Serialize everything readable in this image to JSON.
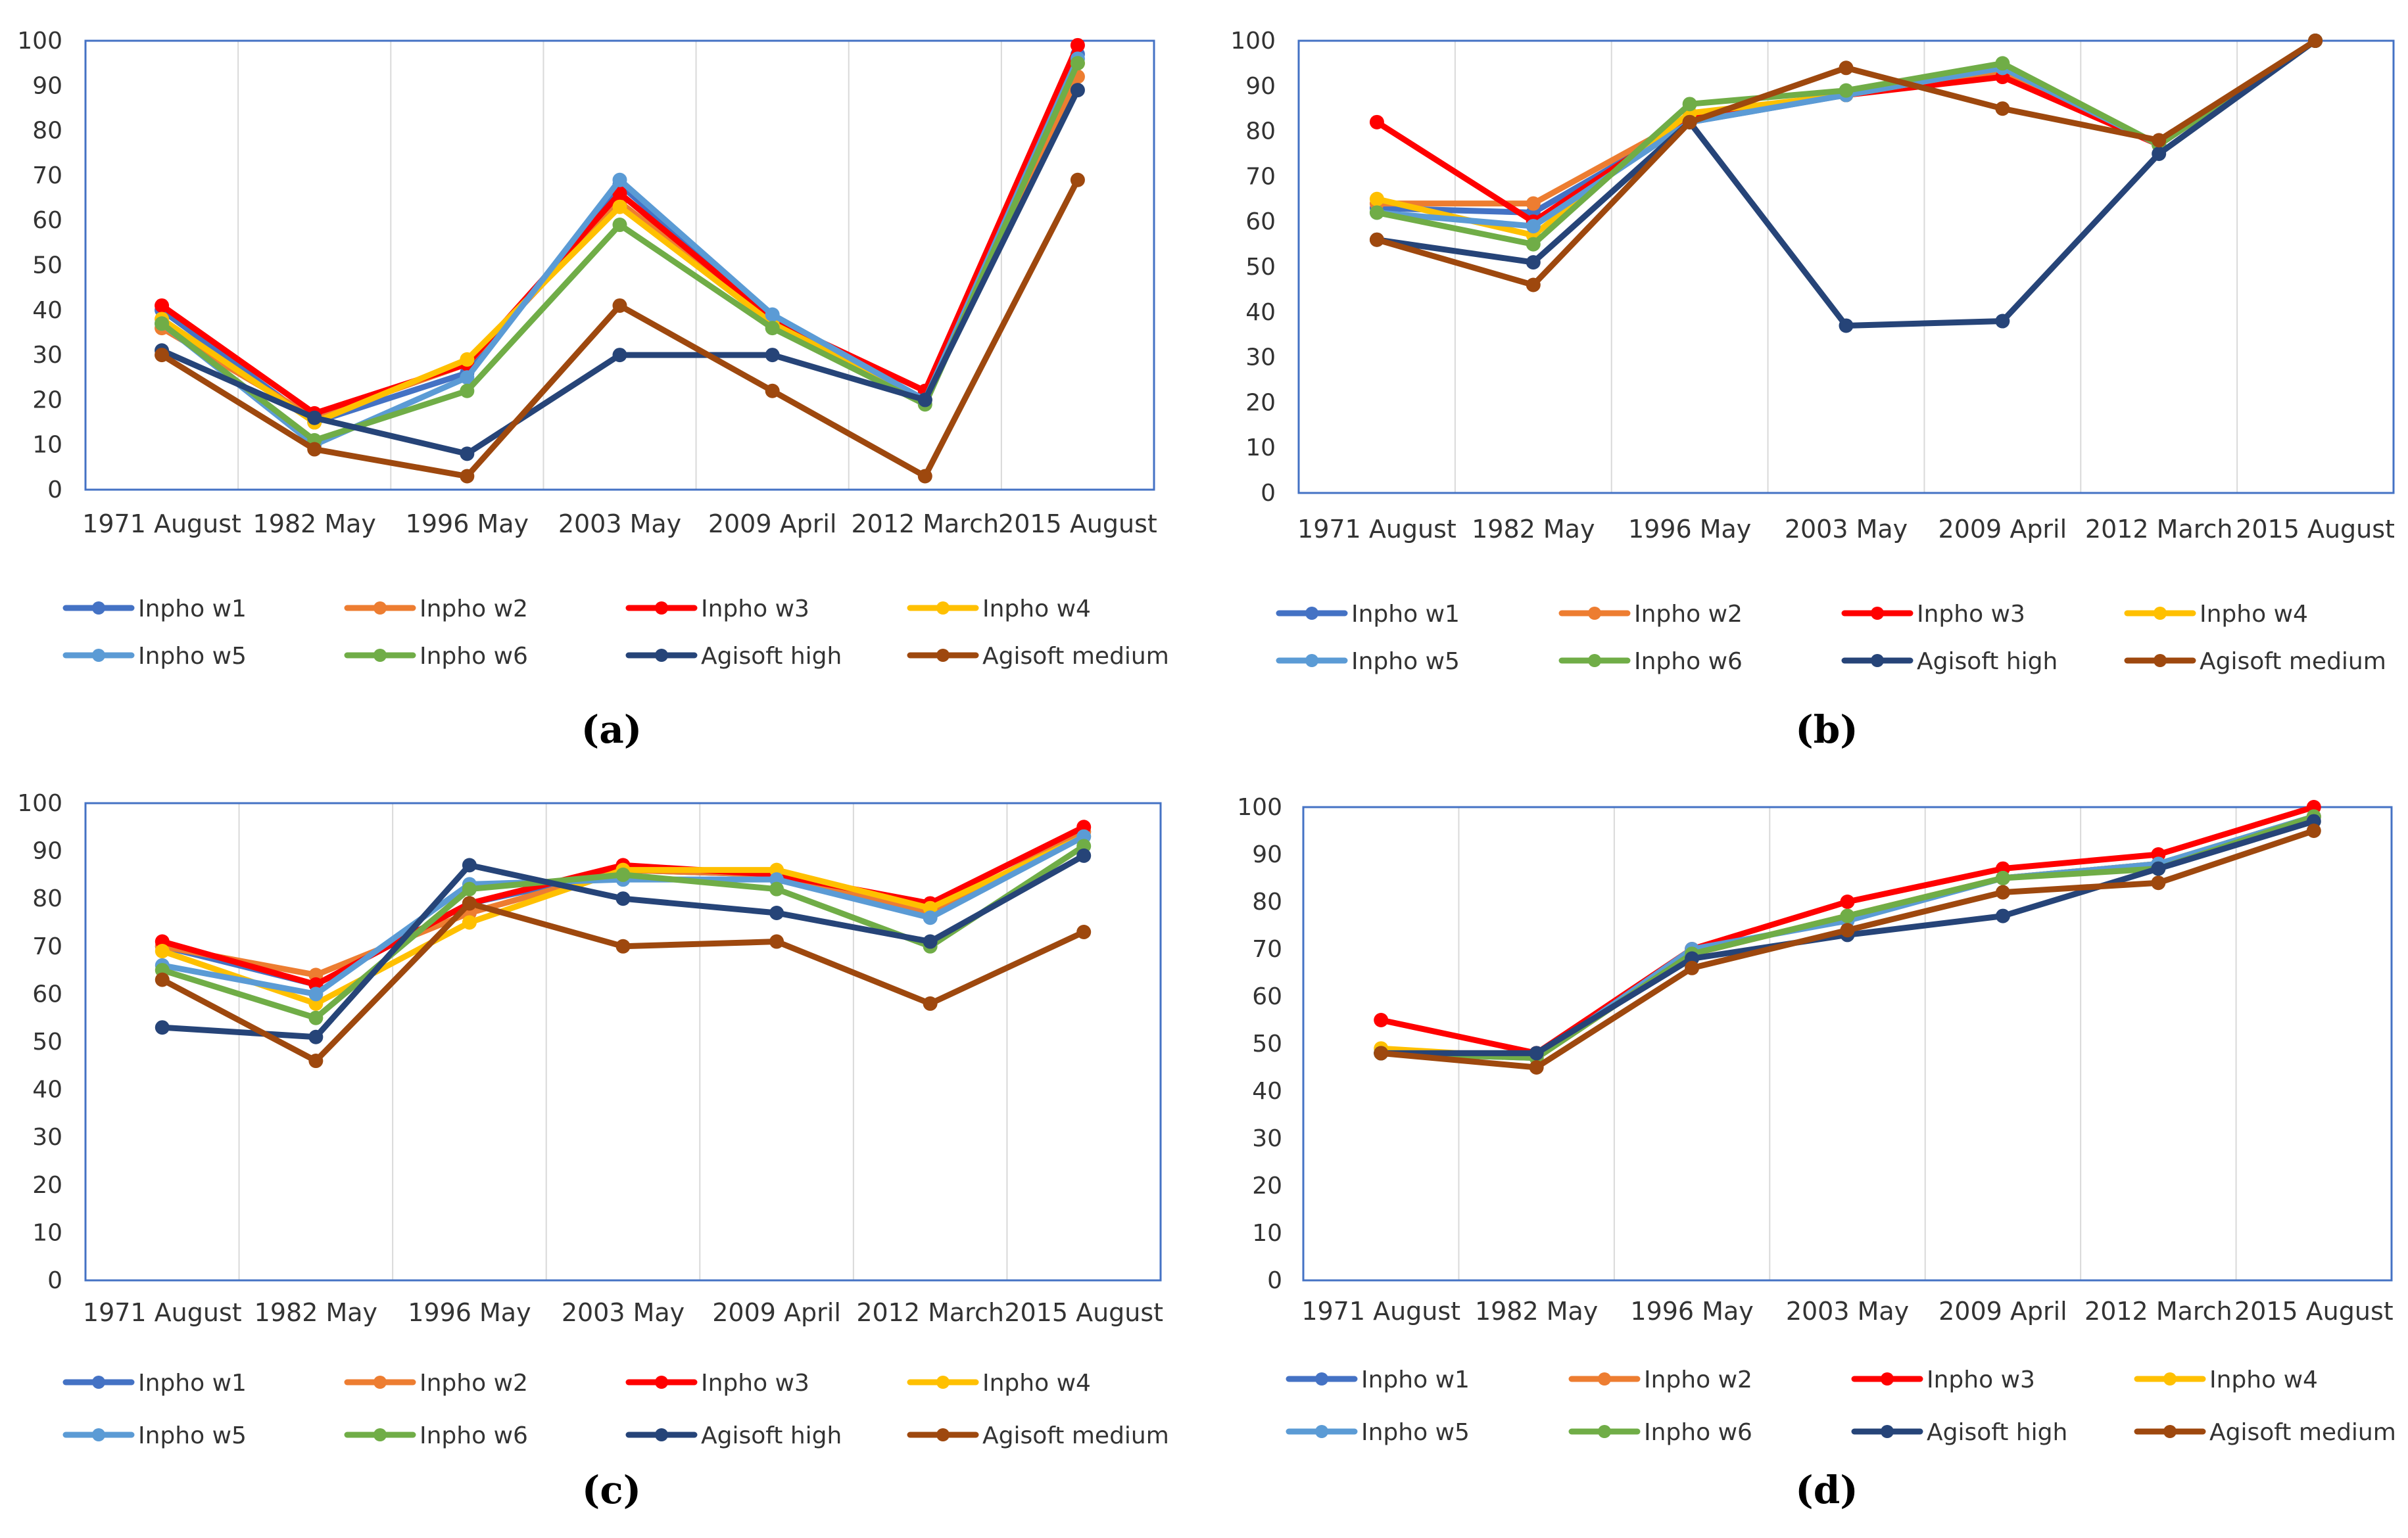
{
  "colors": {
    "Inpho w1": "#4472c4",
    "Inpho w2": "#ed7d31",
    "Inpho w3": "#ff0000",
    "Inpho w4": "#ffc000",
    "Inpho w5": "#5b9bd5",
    "Inpho w6": "#70ad47",
    "Agisoft high": "#264478",
    "Agisoft medium": "#9e480e",
    "frame": "#4472c4",
    "grid": "#d9d9d9"
  },
  "chart_data": [
    {
      "panel_label": "(a)",
      "type": "line",
      "categories": [
        "1971 August",
        "1982 May",
        "1996 May",
        "2003 May",
        "2009 April",
        "2012 March",
        "2015 August"
      ],
      "ylim": [
        0,
        100
      ],
      "yticks": [
        0,
        10,
        20,
        30,
        40,
        50,
        60,
        70,
        80,
        90,
        100
      ],
      "grid": true,
      "legend_position": "bottom",
      "series": [
        {
          "name": "Inpho w1",
          "values": [
            40,
            15,
            26,
            68,
            38,
            20,
            97
          ]
        },
        {
          "name": "Inpho w2",
          "values": [
            36,
            16,
            28,
            64,
            38,
            20,
            92
          ]
        },
        {
          "name": "Inpho w3",
          "values": [
            41,
            17,
            28,
            66,
            38,
            22,
            99
          ]
        },
        {
          "name": "Inpho w4",
          "values": [
            38,
            15,
            29,
            63,
            37,
            20,
            95
          ]
        },
        {
          "name": "Inpho w5",
          "values": [
            37,
            10,
            25,
            69,
            39,
            20,
            96
          ]
        },
        {
          "name": "Inpho w6",
          "values": [
            37,
            11,
            22,
            59,
            36,
            19,
            95
          ]
        },
        {
          "name": "Agisoft high",
          "values": [
            31,
            16,
            8,
            30,
            30,
            20,
            89
          ]
        },
        {
          "name": "Agisoft medium",
          "values": [
            30,
            9,
            3,
            41,
            22,
            3,
            69
          ]
        }
      ]
    },
    {
      "panel_label": "(b)",
      "type": "line",
      "categories": [
        "1971 August",
        "1982 May",
        "1996 May",
        "2003 May",
        "2009 April",
        "2012 March",
        "2015 August"
      ],
      "ylim": [
        0,
        100
      ],
      "yticks": [
        0,
        10,
        20,
        30,
        40,
        50,
        60,
        70,
        80,
        90,
        100
      ],
      "grid": true,
      "legend_position": "bottom",
      "series": [
        {
          "name": "Inpho w1",
          "values": [
            63,
            62,
            82,
            88,
            93,
            77,
            100
          ]
        },
        {
          "name": "Inpho w2",
          "values": [
            64,
            64,
            83,
            88,
            93,
            77,
            100
          ]
        },
        {
          "name": "Inpho w3",
          "values": [
            82,
            60,
            83,
            88,
            92,
            77,
            100
          ]
        },
        {
          "name": "Inpho w4",
          "values": [
            65,
            57,
            84,
            88,
            94,
            77,
            100
          ]
        },
        {
          "name": "Inpho w5",
          "values": [
            62,
            59,
            82,
            88,
            94,
            77,
            100
          ]
        },
        {
          "name": "Inpho w6",
          "values": [
            62,
            55,
            86,
            89,
            95,
            77,
            100
          ]
        },
        {
          "name": "Agisoft high",
          "values": [
            56,
            51,
            82,
            37,
            38,
            75,
            100
          ]
        },
        {
          "name": "Agisoft medium",
          "values": [
            56,
            46,
            82,
            94,
            85,
            78,
            100
          ]
        }
      ]
    },
    {
      "panel_label": "(c)",
      "type": "line",
      "categories": [
        "1971 August",
        "1982 May",
        "1996 May",
        "2003 May",
        "2009 April",
        "2012 March",
        "2015 August"
      ],
      "ylim": [
        0,
        100
      ],
      "yticks": [
        0,
        10,
        20,
        30,
        40,
        50,
        60,
        70,
        80,
        90,
        100
      ],
      "grid": true,
      "legend_position": "bottom",
      "series": [
        {
          "name": "Inpho w1",
          "values": [
            70,
            62,
            79,
            86,
            85,
            77,
            94
          ]
        },
        {
          "name": "Inpho w2",
          "values": [
            70,
            64,
            77,
            86,
            85,
            77,
            94
          ]
        },
        {
          "name": "Inpho w3",
          "values": [
            71,
            62,
            79,
            87,
            85,
            79,
            95
          ]
        },
        {
          "name": "Inpho w4",
          "values": [
            69,
            58,
            75,
            86,
            86,
            78,
            93
          ]
        },
        {
          "name": "Inpho w5",
          "values": [
            66,
            60,
            83,
            84,
            84,
            76,
            93
          ]
        },
        {
          "name": "Inpho w6",
          "values": [
            65,
            55,
            82,
            85,
            82,
            70,
            91
          ]
        },
        {
          "name": "Agisoft high",
          "values": [
            53,
            51,
            87,
            80,
            77,
            71,
            89
          ]
        },
        {
          "name": "Agisoft medium",
          "values": [
            63,
            46,
            79,
            70,
            71,
            58,
            73
          ]
        }
      ]
    },
    {
      "panel_label": "(d)",
      "type": "line",
      "categories": [
        "1971 August",
        "1982 May",
        "1996 May",
        "2003 May",
        "2009 April",
        "2012 March",
        "2015 August"
      ],
      "ylim": [
        0,
        100
      ],
      "yticks": [
        0,
        10,
        20,
        30,
        40,
        50,
        60,
        70,
        80,
        90,
        100
      ],
      "grid": true,
      "legend_position": "bottom",
      "series": [
        {
          "name": "Inpho w1",
          "values": [
            48,
            48,
            69,
            77,
            85,
            88,
            98
          ]
        },
        {
          "name": "Inpho w2",
          "values": [
            48,
            48,
            69,
            77,
            85,
            88,
            98
          ]
        },
        {
          "name": "Inpho w3",
          "values": [
            55,
            48,
            70,
            80,
            87,
            90,
            100
          ]
        },
        {
          "name": "Inpho w4",
          "values": [
            49,
            47,
            69,
            77,
            85,
            88,
            98
          ]
        },
        {
          "name": "Inpho w5",
          "values": [
            48,
            47,
            70,
            76,
            85,
            88,
            98
          ]
        },
        {
          "name": "Inpho w6",
          "values": [
            48,
            47,
            69,
            77,
            85,
            87,
            98
          ]
        },
        {
          "name": "Agisoft high",
          "values": [
            48,
            48,
            68,
            73,
            77,
            87,
            97
          ]
        },
        {
          "name": "Agisoft medium",
          "values": [
            48,
            45,
            66,
            74,
            82,
            84,
            95
          ]
        }
      ]
    }
  ]
}
